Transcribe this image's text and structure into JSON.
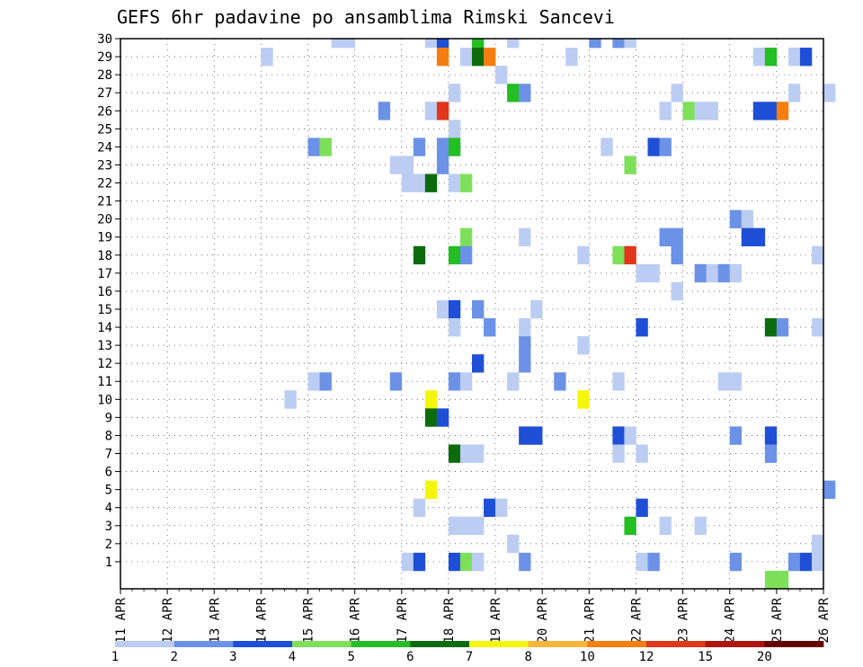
{
  "chart_data": {
    "type": "heatmap",
    "title": "GEFS 6hr padavine po ansamblima Rimski Sancevi",
    "x_ticks": [
      "11 APR",
      "12 APR",
      "13 APR",
      "14 APR",
      "15 APR",
      "16 APR",
      "17 APR",
      "18 APR",
      "19 APR",
      "20 APR",
      "21 APR",
      "22 APR",
      "23 APR",
      "24 APR",
      "25 APR",
      "26 APR"
    ],
    "y_ticks": [
      "1",
      "2",
      "3",
      "4",
      "5",
      "6",
      "7",
      "8",
      "9",
      "10",
      "11",
      "12",
      "13",
      "14",
      "15",
      "16",
      "17",
      "18",
      "19",
      "20",
      "21",
      "22",
      "23",
      "24",
      "25",
      "26",
      "27",
      "28",
      "29",
      "30"
    ],
    "x_range": [
      "11 APR 00Z",
      "26 APR 00Z"
    ],
    "y_range": [
      0,
      30
    ],
    "time_step_hours": 6,
    "grid": true,
    "colorbar": {
      "ticks": [
        "1",
        "2",
        "3",
        "4",
        "5",
        "6",
        "7",
        "8",
        "10",
        "12",
        "15",
        "20"
      ],
      "colors": [
        "#bccdf3",
        "#6b92e6",
        "#1e4fd6",
        "#7ee05a",
        "#22be22",
        "#0c6b0c",
        "#f6f60c",
        "#f9b43a",
        "#f57e10",
        "#e0361a",
        "#ad150d",
        "#650303"
      ]
    },
    "cells": [
      {
        "member": 30,
        "day": "15 APR",
        "hour": 12,
        "level": 1
      },
      {
        "member": 30,
        "day": "15 APR",
        "hour": 18,
        "level": 1
      },
      {
        "member": 30,
        "day": "17 APR",
        "hour": 12,
        "level": 1
      },
      {
        "member": 30,
        "day": "17 APR",
        "hour": 18,
        "level": 3
      },
      {
        "member": 30,
        "day": "18 APR",
        "hour": 12,
        "level": 5
      },
      {
        "member": 30,
        "day": "19 APR",
        "hour": 6,
        "level": 1
      },
      {
        "member": 30,
        "day": "21 APR",
        "hour": 0,
        "level": 2
      },
      {
        "member": 30,
        "day": "21 APR",
        "hour": 12,
        "level": 2
      },
      {
        "member": 30,
        "day": "21 APR",
        "hour": 18,
        "level": 1
      },
      {
        "member": 29,
        "day": "14 APR",
        "hour": 0,
        "level": 1
      },
      {
        "member": 29,
        "day": "17 APR",
        "hour": 18,
        "level": 9
      },
      {
        "member": 29,
        "day": "18 APR",
        "hour": 6,
        "level": 1
      },
      {
        "member": 29,
        "day": "18 APR",
        "hour": 12,
        "level": 6
      },
      {
        "member": 29,
        "day": "18 APR",
        "hour": 18,
        "level": 9
      },
      {
        "member": 29,
        "day": "20 APR",
        "hour": 12,
        "level": 1
      },
      {
        "member": 29,
        "day": "24 APR",
        "hour": 12,
        "level": 1
      },
      {
        "member": 29,
        "day": "24 APR",
        "hour": 18,
        "level": 5
      },
      {
        "member": 29,
        "day": "25 APR",
        "hour": 6,
        "level": 1
      },
      {
        "member": 29,
        "day": "25 APR",
        "hour": 12,
        "level": 3
      },
      {
        "member": 28,
        "day": "19 APR",
        "hour": 0,
        "level": 1
      },
      {
        "member": 27,
        "day": "18 APR",
        "hour": 0,
        "level": 1
      },
      {
        "member": 27,
        "day": "19 APR",
        "hour": 6,
        "level": 5
      },
      {
        "member": 27,
        "day": "19 APR",
        "hour": 12,
        "level": 2
      },
      {
        "member": 27,
        "day": "22 APR",
        "hour": 18,
        "level": 1
      },
      {
        "member": 27,
        "day": "25 APR",
        "hour": 6,
        "level": 1
      },
      {
        "member": 27,
        "day": "26 APR",
        "hour": 0,
        "level": 1
      },
      {
        "member": 26,
        "day": "16 APR",
        "hour": 12,
        "level": 2
      },
      {
        "member": 26,
        "day": "17 APR",
        "hour": 12,
        "level": 1
      },
      {
        "member": 26,
        "day": "17 APR",
        "hour": 18,
        "level": 10
      },
      {
        "member": 26,
        "day": "22 APR",
        "hour": 12,
        "level": 1
      },
      {
        "member": 26,
        "day": "23 APR",
        "hour": 0,
        "level": 4
      },
      {
        "member": 26,
        "day": "23 APR",
        "hour": 6,
        "level": 1
      },
      {
        "member": 26,
        "day": "23 APR",
        "hour": 12,
        "level": 1
      },
      {
        "member": 26,
        "day": "24 APR",
        "hour": 12,
        "level": 3
      },
      {
        "member": 26,
        "day": "24 APR",
        "hour": 18,
        "level": 3
      },
      {
        "member": 26,
        "day": "25 APR",
        "hour": 0,
        "level": 9
      },
      {
        "member": 25,
        "day": "18 APR",
        "hour": 0,
        "level": 1
      },
      {
        "member": 24,
        "day": "15 APR",
        "hour": 0,
        "level": 2
      },
      {
        "member": 24,
        "day": "15 APR",
        "hour": 6,
        "level": 4
      },
      {
        "member": 24,
        "day": "17 APR",
        "hour": 6,
        "level": 2
      },
      {
        "member": 24,
        "day": "17 APR",
        "hour": 18,
        "level": 2
      },
      {
        "member": 24,
        "day": "18 APR",
        "hour": 0,
        "level": 5
      },
      {
        "member": 24,
        "day": "21 APR",
        "hour": 6,
        "level": 1
      },
      {
        "member": 24,
        "day": "22 APR",
        "hour": 6,
        "level": 3
      },
      {
        "member": 24,
        "day": "22 APR",
        "hour": 12,
        "level": 2
      },
      {
        "member": 23,
        "day": "16 APR",
        "hour": 18,
        "level": 1
      },
      {
        "member": 23,
        "day": "17 APR",
        "hour": 0,
        "level": 1
      },
      {
        "member": 23,
        "day": "17 APR",
        "hour": 18,
        "level": 2
      },
      {
        "member": 23,
        "day": "21 APR",
        "hour": 18,
        "level": 4
      },
      {
        "member": 22,
        "day": "17 APR",
        "hour": 0,
        "level": 1
      },
      {
        "member": 22,
        "day": "17 APR",
        "hour": 6,
        "level": 1
      },
      {
        "member": 22,
        "day": "17 APR",
        "hour": 12,
        "level": 6
      },
      {
        "member": 22,
        "day": "18 APR",
        "hour": 0,
        "level": 1
      },
      {
        "member": 22,
        "day": "18 APR",
        "hour": 6,
        "level": 4
      },
      {
        "member": 20,
        "day": "24 APR",
        "hour": 0,
        "level": 2
      },
      {
        "member": 20,
        "day": "24 APR",
        "hour": 6,
        "level": 1
      },
      {
        "member": 19,
        "day": "18 APR",
        "hour": 6,
        "level": 4
      },
      {
        "member": 19,
        "day": "19 APR",
        "hour": 12,
        "level": 1
      },
      {
        "member": 19,
        "day": "22 APR",
        "hour": 12,
        "level": 2
      },
      {
        "member": 19,
        "day": "22 APR",
        "hour": 18,
        "level": 2
      },
      {
        "member": 19,
        "day": "24 APR",
        "hour": 6,
        "level": 3
      },
      {
        "member": 19,
        "day": "24 APR",
        "hour": 12,
        "level": 3
      },
      {
        "member": 18,
        "day": "17 APR",
        "hour": 6,
        "level": 6
      },
      {
        "member": 18,
        "day": "18 APR",
        "hour": 0,
        "level": 5
      },
      {
        "member": 18,
        "day": "18 APR",
        "hour": 6,
        "level": 2
      },
      {
        "member": 18,
        "day": "20 APR",
        "hour": 18,
        "level": 1
      },
      {
        "member": 18,
        "day": "21 APR",
        "hour": 12,
        "level": 4
      },
      {
        "member": 18,
        "day": "21 APR",
        "hour": 18,
        "level": 10
      },
      {
        "member": 18,
        "day": "22 APR",
        "hour": 18,
        "level": 2
      },
      {
        "member": 18,
        "day": "25 APR",
        "hour": 18,
        "level": 1
      },
      {
        "member": 17,
        "day": "22 APR",
        "hour": 0,
        "level": 1
      },
      {
        "member": 17,
        "day": "22 APR",
        "hour": 6,
        "level": 1
      },
      {
        "member": 17,
        "day": "23 APR",
        "hour": 6,
        "level": 2
      },
      {
        "member": 17,
        "day": "23 APR",
        "hour": 12,
        "level": 1
      },
      {
        "member": 17,
        "day": "23 APR",
        "hour": 18,
        "level": 2
      },
      {
        "member": 17,
        "day": "24 APR",
        "hour": 0,
        "level": 1
      },
      {
        "member": 16,
        "day": "22 APR",
        "hour": 18,
        "level": 1
      },
      {
        "member": 15,
        "day": "17 APR",
        "hour": 18,
        "level": 1
      },
      {
        "member": 15,
        "day": "18 APR",
        "hour": 0,
        "level": 3
      },
      {
        "member": 15,
        "day": "18 APR",
        "hour": 12,
        "level": 2
      },
      {
        "member": 15,
        "day": "19 APR",
        "hour": 18,
        "level": 1
      },
      {
        "member": 14,
        "day": "18 APR",
        "hour": 0,
        "level": 1
      },
      {
        "member": 14,
        "day": "18 APR",
        "hour": 18,
        "level": 2
      },
      {
        "member": 14,
        "day": "19 APR",
        "hour": 12,
        "level": 1
      },
      {
        "member": 14,
        "day": "22 APR",
        "hour": 0,
        "level": 3
      },
      {
        "member": 14,
        "day": "24 APR",
        "hour": 18,
        "level": 6
      },
      {
        "member": 14,
        "day": "25 APR",
        "hour": 0,
        "level": 2
      },
      {
        "member": 14,
        "day": "25 APR",
        "hour": 18,
        "level": 1
      },
      {
        "member": 13,
        "day": "19 APR",
        "hour": 12,
        "level": 2
      },
      {
        "member": 13,
        "day": "20 APR",
        "hour": 18,
        "level": 1
      },
      {
        "member": 12,
        "day": "18 APR",
        "hour": 12,
        "level": 3
      },
      {
        "member": 12,
        "day": "19 APR",
        "hour": 12,
        "level": 2
      },
      {
        "member": 11,
        "day": "15 APR",
        "hour": 0,
        "level": 1
      },
      {
        "member": 11,
        "day": "15 APR",
        "hour": 6,
        "level": 2
      },
      {
        "member": 11,
        "day": "16 APR",
        "hour": 18,
        "level": 2
      },
      {
        "member": 11,
        "day": "18 APR",
        "hour": 0,
        "level": 2
      },
      {
        "member": 11,
        "day": "18 APR",
        "hour": 6,
        "level": 1
      },
      {
        "member": 11,
        "day": "19 APR",
        "hour": 6,
        "level": 1
      },
      {
        "member": 11,
        "day": "20 APR",
        "hour": 6,
        "level": 2
      },
      {
        "member": 11,
        "day": "21 APR",
        "hour": 12,
        "level": 1
      },
      {
        "member": 11,
        "day": "23 APR",
        "hour": 18,
        "level": 1
      },
      {
        "member": 11,
        "day": "24 APR",
        "hour": 0,
        "level": 1
      },
      {
        "member": 10,
        "day": "14 APR",
        "hour": 12,
        "level": 1
      },
      {
        "member": 10,
        "day": "17 APR",
        "hour": 12,
        "level": 7
      },
      {
        "member": 10,
        "day": "20 APR",
        "hour": 18,
        "level": 7
      },
      {
        "member": 9,
        "day": "17 APR",
        "hour": 12,
        "level": 6
      },
      {
        "member": 9,
        "day": "17 APR",
        "hour": 18,
        "level": 3
      },
      {
        "member": 8,
        "day": "19 APR",
        "hour": 12,
        "level": 3
      },
      {
        "member": 8,
        "day": "19 APR",
        "hour": 18,
        "level": 3
      },
      {
        "member": 8,
        "day": "21 APR",
        "hour": 12,
        "level": 3
      },
      {
        "member": 8,
        "day": "21 APR",
        "hour": 18,
        "level": 1
      },
      {
        "member": 8,
        "day": "24 APR",
        "hour": 0,
        "level": 2
      },
      {
        "member": 8,
        "day": "24 APR",
        "hour": 18,
        "level": 3
      },
      {
        "member": 7,
        "day": "18 APR",
        "hour": 0,
        "level": 6
      },
      {
        "member": 7,
        "day": "18 APR",
        "hour": 6,
        "level": 1
      },
      {
        "member": 7,
        "day": "18 APR",
        "hour": 12,
        "level": 1
      },
      {
        "member": 7,
        "day": "21 APR",
        "hour": 12,
        "level": 1
      },
      {
        "member": 7,
        "day": "22 APR",
        "hour": 0,
        "level": 1
      },
      {
        "member": 7,
        "day": "24 APR",
        "hour": 18,
        "level": 2
      },
      {
        "member": 5,
        "day": "17 APR",
        "hour": 12,
        "level": 7
      },
      {
        "member": 5,
        "day": "26 APR",
        "hour": 0,
        "level": 2
      },
      {
        "member": 4,
        "day": "17 APR",
        "hour": 6,
        "level": 1
      },
      {
        "member": 4,
        "day": "18 APR",
        "hour": 18,
        "level": 3
      },
      {
        "member": 4,
        "day": "19 APR",
        "hour": 0,
        "level": 1
      },
      {
        "member": 4,
        "day": "22 APR",
        "hour": 0,
        "level": 3
      },
      {
        "member": 3,
        "day": "18 APR",
        "hour": 0,
        "level": 1
      },
      {
        "member": 3,
        "day": "18 APR",
        "hour": 6,
        "level": 1
      },
      {
        "member": 3,
        "day": "18 APR",
        "hour": 12,
        "level": 1
      },
      {
        "member": 3,
        "day": "21 APR",
        "hour": 18,
        "level": 5
      },
      {
        "member": 3,
        "day": "22 APR",
        "hour": 12,
        "level": 1
      },
      {
        "member": 3,
        "day": "23 APR",
        "hour": 6,
        "level": 1
      },
      {
        "member": 2,
        "day": "19 APR",
        "hour": 6,
        "level": 1
      },
      {
        "member": 2,
        "day": "25 APR",
        "hour": 18,
        "level": 1
      },
      {
        "member": 1,
        "day": "17 APR",
        "hour": 0,
        "level": 1
      },
      {
        "member": 1,
        "day": "17 APR",
        "hour": 6,
        "level": 3
      },
      {
        "member": 1,
        "day": "18 APR",
        "hour": 0,
        "level": 3
      },
      {
        "member": 1,
        "day": "18 APR",
        "hour": 6,
        "level": 4
      },
      {
        "member": 1,
        "day": "18 APR",
        "hour": 12,
        "level": 1
      },
      {
        "member": 1,
        "day": "19 APR",
        "hour": 12,
        "level": 2
      },
      {
        "member": 1,
        "day": "22 APR",
        "hour": 0,
        "level": 1
      },
      {
        "member": 1,
        "day": "22 APR",
        "hour": 6,
        "level": 2
      },
      {
        "member": 1,
        "day": "24 APR",
        "hour": 0,
        "level": 2
      },
      {
        "member": 1,
        "day": "25 APR",
        "hour": 6,
        "level": 2
      },
      {
        "member": 1,
        "day": "25 APR",
        "hour": 12,
        "level": 3
      },
      {
        "member": 1,
        "day": "25 APR",
        "hour": 18,
        "level": 1
      },
      {
        "member": 0,
        "day": "24 APR",
        "hour": 18,
        "level": 4
      },
      {
        "member": 0,
        "day": "25 APR",
        "hour": 0,
        "level": 4
      }
    ]
  }
}
